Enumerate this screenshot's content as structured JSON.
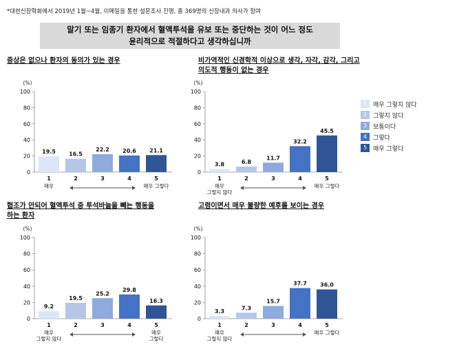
{
  "note": "*대한신장학회에서 2019년 1월~4월, 이메일을 통한 설문조사 진행, 총 369명의 신장내과 의사가 참여",
  "question": {
    "line1": "말기 또는 임종기 환자에서 혈액투석을 유보 또는 중단하는 것이 어느 정도",
    "line2": "윤리적으로 적절하다고 생각하십니까"
  },
  "colors": [
    "#dde6f4",
    "#b4c7e7",
    "#8faadc",
    "#4472c4",
    "#2f5597"
  ],
  "legend": [
    {
      "num": "1",
      "label": "매우 그렇지 않다"
    },
    {
      "num": "2",
      "label": "그렇지 않다"
    },
    {
      "num": "3",
      "label": "보통이다"
    },
    {
      "num": "4",
      "label": "그렇다"
    },
    {
      "num": "5",
      "label": "매우 그렇다"
    }
  ],
  "panels": [
    {
      "title_lines": [
        "증상은 없으나 환자의 동의가 있는 경우"
      ]
    },
    {
      "title_lines": [
        "비가역적인 신경학적 이상으로 생각, 자각, 감각, 그리고",
        "의도적 행동이 없는 경우"
      ]
    },
    {
      "title_lines": [
        "협조가 안되어 혈액투석 중 투석바늘을 빼는 행동을",
        "하는 환자"
      ]
    },
    {
      "title_lines": [
        "고령이면서 매우 불량한 예후를 보이는 경우"
      ]
    }
  ],
  "chart_data": [
    {
      "type": "bar",
      "ylabel": "(%)",
      "ylim": [
        0,
        100
      ],
      "yticks": [
        0,
        20,
        40,
        60,
        80,
        100
      ],
      "categories": [
        "1",
        "2",
        "3",
        "4",
        "5"
      ],
      "values": [
        19.5,
        16.5,
        22.2,
        20.6,
        21.1
      ],
      "value_labels": [
        "19.5",
        "16.5",
        "22.2",
        "20.6",
        "21.1"
      ],
      "end_labels": {
        "low": [
          "매우"
        ],
        "high": [
          "매우 그렇다"
        ]
      }
    },
    {
      "type": "bar",
      "ylabel": "(%)",
      "ylim": [
        0,
        100
      ],
      "yticks": [
        0,
        20,
        40,
        60,
        80,
        100
      ],
      "categories": [
        "1",
        "2",
        "3",
        "4",
        "5"
      ],
      "values": [
        3.8,
        6.8,
        11.7,
        32.2,
        45.5
      ],
      "value_labels": [
        "3.8",
        "6.8",
        "11.7",
        "32.2",
        "45.5"
      ],
      "end_labels": {
        "low": [
          "매우",
          "그렇지 않다"
        ],
        "high": [
          "매우 그렇다"
        ]
      }
    },
    {
      "type": "bar",
      "ylabel": "(%)",
      "ylim": [
        0,
        100
      ],
      "yticks": [
        0,
        20,
        40,
        60,
        80,
        100
      ],
      "categories": [
        "1",
        "2",
        "3",
        "4",
        "5"
      ],
      "values": [
        9.2,
        19.5,
        25.2,
        29.8,
        16.3
      ],
      "value_labels": [
        "9.2",
        "19.5",
        "25.2",
        "29.8",
        "16.3"
      ],
      "end_labels": {
        "low": [
          "매우",
          "그렇지 않다"
        ],
        "high": [
          "매우",
          "그렇다"
        ]
      }
    },
    {
      "type": "bar",
      "ylabel": "(%)",
      "ylim": [
        0,
        100
      ],
      "yticks": [
        0,
        20,
        40,
        60,
        80,
        100
      ],
      "categories": [
        "1",
        "2",
        "3",
        "4",
        "5"
      ],
      "values": [
        3.3,
        7.3,
        15.7,
        37.7,
        36.0
      ],
      "value_labels": [
        "3.3",
        "7.3",
        "15.7",
        "37.7",
        "36.0"
      ],
      "end_labels": {
        "low": [
          "매우",
          "그렇지 않다"
        ],
        "high": [
          "매우 그렇다"
        ]
      }
    }
  ]
}
